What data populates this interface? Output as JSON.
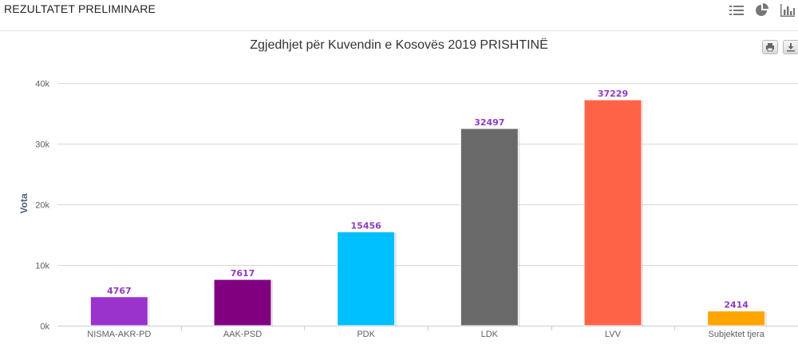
{
  "page": {
    "title": "REZULTATET PRELIMINARE",
    "view_icons": [
      "list-icon",
      "pie-chart-icon",
      "bar-chart-icon"
    ],
    "export_icons": [
      "print-icon",
      "download-icon"
    ]
  },
  "chart_data": {
    "type": "bar",
    "title": "Zgjedhjet për Kuvendin e Kosovës 2019 PRISHTINË",
    "xlabel": "",
    "ylabel": "Vota",
    "ylim": [
      0,
      40000
    ],
    "yticks": [
      0,
      10000,
      20000,
      30000,
      40000
    ],
    "ytick_labels": [
      "0k",
      "10k",
      "20k",
      "30k",
      "40k"
    ],
    "grid": true,
    "legend": "none",
    "categories": [
      "NISMA-AKR-PD",
      "AAK-PSD",
      "PDK",
      "LDK",
      "LVV",
      "Subjektet tjera"
    ],
    "values": [
      4767,
      7617,
      15456,
      32497,
      37229,
      2414
    ],
    "colors": [
      "#9933cc",
      "#800080",
      "#00bfff",
      "#696969",
      "#ff6347",
      "#ffa500"
    ]
  }
}
